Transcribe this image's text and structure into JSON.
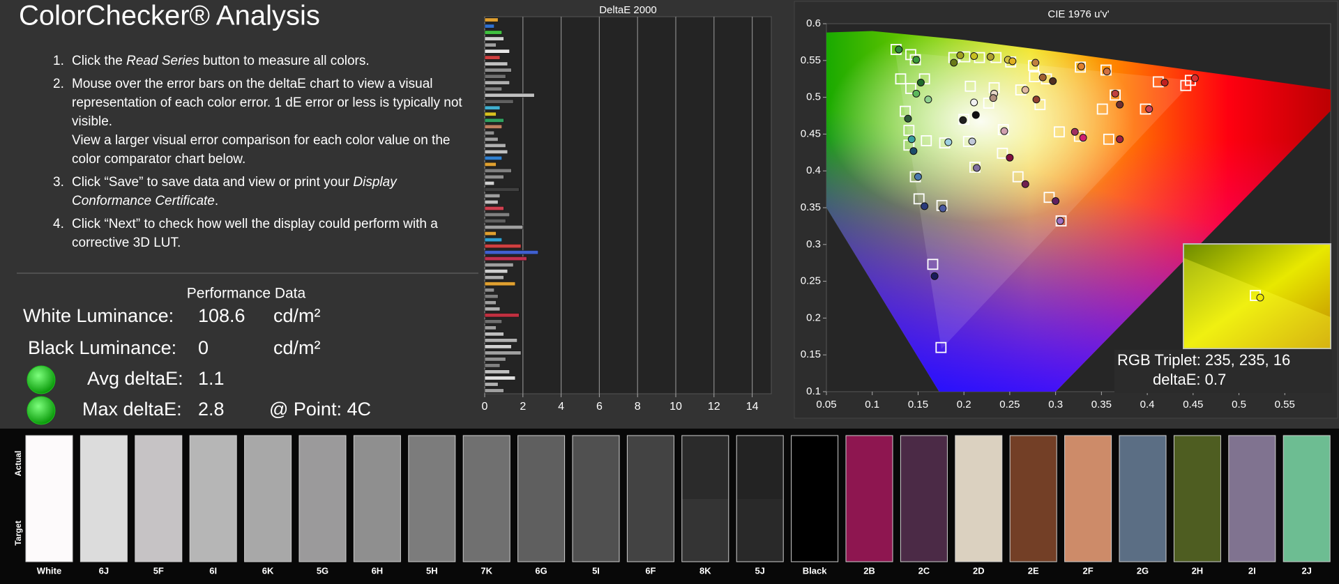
{
  "header": {
    "title": "ColorChecker® Analysis"
  },
  "instructions": [
    {
      "number": "1.",
      "paragraphs": [
        [
          {
            "text": "Click the "
          },
          {
            "text": "Read Series",
            "italic": true
          },
          {
            "text": " button to measure all colors."
          }
        ]
      ]
    },
    {
      "number": "2.",
      "paragraphs": [
        [
          {
            "text": "Mouse over the error bars on the deltaE chart to view a visual representation of each color error. 1 dE error or less is typically not visible."
          }
        ],
        [
          {
            "text": "View a larger visual error comparison for each color value on the color comparator chart below."
          }
        ]
      ]
    },
    {
      "number": "3.",
      "paragraphs": [
        [
          {
            "text": "Click “Save” to save data and view or print your "
          },
          {
            "text": "Display Conformance Certificate",
            "italic": true
          },
          {
            "text": "."
          }
        ]
      ]
    },
    {
      "number": "4.",
      "paragraphs": [
        [
          {
            "text": "Click “Next” to check how well the display could perform with a corrective 3D LUT."
          }
        ]
      ]
    }
  ],
  "performance": {
    "title": "Performance Data",
    "white_luminance": {
      "label": "White Luminance:",
      "value": 108.6,
      "unit": "cd/m²"
    },
    "black_luminance": {
      "label": "Black Luminance:",
      "value": 0,
      "unit": "cd/m²"
    },
    "avg_deltae": {
      "label": "Avg deltaE:",
      "value": 1.1
    },
    "max_deltae": {
      "label": "Max deltaE:",
      "value": 2.8,
      "point": "@ Point: 4C"
    },
    "status_color": "#1fc21f"
  },
  "chart_data": [
    {
      "type": "bar",
      "orientation": "horizontal",
      "title": "DeltaE 2000",
      "values": [
        0.7,
        0.5,
        0.9,
        1.0,
        0.6,
        1.3,
        0.8,
        1.2,
        1.4,
        1.1,
        1.3,
        0.9,
        2.6,
        1.5,
        0.8,
        0.6,
        1.0,
        0.9,
        0.5,
        0.7,
        1.1,
        1.2,
        0.9,
        0.6,
        1.4,
        1.0,
        0.5,
        1.8,
        0.8,
        0.7,
        1.0,
        1.3,
        1.1,
        2.0,
        0.6,
        0.9,
        1.9,
        2.8,
        2.2,
        1.5,
        1.2,
        1.0,
        1.6,
        0.5,
        0.7,
        0.6,
        0.8,
        1.8,
        0.9,
        0.6,
        1.0,
        1.7,
        1.4,
        1.9,
        1.1,
        0.8,
        1.3,
        1.6,
        0.7,
        1.0
      ],
      "colors": [
        "#e0a030",
        "#3070d0",
        "#40c040",
        "#d0d0d0",
        "#a0a0a0",
        "#e8e8e8",
        "#d04040",
        "#c0c0c0",
        "#909090",
        "#707070",
        "#b0b0b0",
        "#808080",
        "#c0c0c0",
        "#606060",
        "#40b0d0",
        "#d8c020",
        "#30a060",
        "#c08060",
        "#909090",
        "#a0a0a0",
        "#b0b0b0",
        "#c0c0c0",
        "#3080d0",
        "#e0a030",
        "#808080",
        "#909090",
        "#d0d0d0",
        "#404040",
        "#a0a0a0",
        "#c0c0c0",
        "#d04050",
        "#808080",
        "#606060",
        "#a0a0a0",
        "#e0a030",
        "#30a0d0",
        "#d04040",
        "#4060d0",
        "#c03050",
        "#a0a0a0",
        "#d0d0d0",
        "#b0b0b0",
        "#e0a030",
        "#909090",
        "#808080",
        "#a0a0a0",
        "#b0b0b0",
        "#c03040",
        "#707070",
        "#a0a0a0",
        "#c0c0c0",
        "#b0b0b0",
        "#d0d0d0",
        "#a0a0a0",
        "#909090",
        "#808080",
        "#c0c0c0",
        "#e0e0e0",
        "#b0b0b0",
        "#a0a0a0"
      ],
      "xlim": [
        0,
        15
      ],
      "xticks": [
        0,
        2,
        4,
        6,
        8,
        10,
        12,
        14
      ],
      "grid": true
    },
    {
      "type": "scatter",
      "title": "CIE 1976 u'v'",
      "xlim": [
        0.05,
        0.6
      ],
      "ylim": [
        0.1,
        0.6
      ],
      "xticks": [
        0.05,
        0.1,
        0.15,
        0.2,
        0.25,
        0.3,
        0.35,
        0.4,
        0.45,
        0.5,
        0.55
      ],
      "yticks": [
        0.1,
        0.15,
        0.2,
        0.25,
        0.3,
        0.35,
        0.4,
        0.45,
        0.5,
        0.55,
        0.6
      ],
      "grid": false,
      "series": [
        {
          "marker": "square",
          "color": "#ffffff",
          "x": [
            0.126,
            0.142,
            0.147,
            0.131,
            0.142,
            0.157,
            0.136,
            0.14,
            0.14,
            0.159,
            0.179,
            0.205,
            0.147,
            0.151,
            0.176,
            0.166,
            0.175,
            0.189,
            0.201,
            0.217,
            0.235,
            0.251,
            0.276,
            0.277,
            0.29,
            0.207,
            0.233,
            0.262,
            0.327,
            0.355,
            0.365,
            0.351,
            0.398,
            0.412,
            0.442,
            0.447,
            0.304,
            0.326,
            0.358,
            0.243,
            0.242,
            0.212,
            0.259,
            0.293,
            0.306,
            0.2,
            0.227,
            0.283
          ],
          "y": [
            0.565,
            0.558,
            0.551,
            0.525,
            0.512,
            0.525,
            0.481,
            0.455,
            0.435,
            0.441,
            0.438,
            0.44,
            0.392,
            0.362,
            0.353,
            0.273,
            0.16,
            0.554,
            0.555,
            0.554,
            0.554,
            0.548,
            0.543,
            0.528,
            0.525,
            0.515,
            0.513,
            0.51,
            0.541,
            0.537,
            0.503,
            0.484,
            0.484,
            0.521,
            0.516,
            0.523,
            0.453,
            0.447,
            0.443,
            0.456,
            0.424,
            0.405,
            0.392,
            0.364,
            0.332,
            0.47,
            0.492,
            0.49
          ]
        },
        {
          "marker": "circle",
          "x": [
            0.129,
            0.148,
            0.153,
            0.148,
            0.161,
            0.139,
            0.143,
            0.145,
            0.183,
            0.209,
            0.15,
            0.157,
            0.177,
            0.168,
            0.189,
            0.196,
            0.211,
            0.229,
            0.248,
            0.253,
            0.278,
            0.286,
            0.297,
            0.211,
            0.233,
            0.267,
            0.328,
            0.356,
            0.37,
            0.365,
            0.402,
            0.419,
            0.452,
            0.321,
            0.33,
            0.37,
            0.244,
            0.25,
            0.214,
            0.267,
            0.3,
            0.305,
            0.199,
            0.213,
            0.232,
            0.279
          ],
          "y": [
            0.565,
            0.551,
            0.52,
            0.505,
            0.497,
            0.471,
            0.443,
            0.427,
            0.439,
            0.44,
            0.392,
            0.352,
            0.349,
            0.257,
            0.547,
            0.557,
            0.556,
            0.555,
            0.551,
            0.549,
            0.547,
            0.527,
            0.522,
            0.493,
            0.505,
            0.51,
            0.542,
            0.535,
            0.49,
            0.505,
            0.484,
            0.52,
            0.526,
            0.453,
            0.445,
            0.443,
            0.454,
            0.418,
            0.404,
            0.382,
            0.359,
            0.332,
            0.469,
            0.476,
            0.499,
            0.497
          ],
          "colors": [
            "#2e8b3a",
            "#3a9a3a",
            "#1f6b2a",
            "#5cb85c",
            "#8fd08f",
            "#2e5a3a",
            "#3aa0a0",
            "#1d4d6b",
            "#9ed0e0",
            "#c0c8d8",
            "#4a7ab0",
            "#2a3a7a",
            "#4a5aa0",
            "#1a1a5a",
            "#6a7a1a",
            "#a0a020",
            "#c8c020",
            "#b0a030",
            "#d0c040",
            "#e0b020",
            "#c08040",
            "#a06030",
            "#503020",
            "#f0f0f0",
            "#e8d8c8",
            "#e0b8a0",
            "#e08030",
            "#d07040",
            "#703030",
            "#c04040",
            "#d04050",
            "#c02020",
            "#e03030",
            "#a03060",
            "#d02070",
            "#a02040",
            "#d0a0b0",
            "#801040",
            "#8070a0",
            "#702050",
            "#602060",
            "#a070c0",
            "#202020",
            "#101010",
            "#b09080",
            "#904030"
          ]
        }
      ],
      "readout": {
        "rgb": "RGB Triplet: 235, 235, 16",
        "deltae": "deltaE: 0.7"
      }
    }
  ],
  "swatches": {
    "row_labels": [
      "Actual",
      "Target"
    ],
    "items": [
      {
        "label": "White",
        "actual": "#fdfafb",
        "target": "#fdfafb"
      },
      {
        "label": "6J",
        "actual": "#dcdcdc",
        "target": "#dcdcdc"
      },
      {
        "label": "5F",
        "actual": "#c6c3c5",
        "target": "#c6c3c5"
      },
      {
        "label": "6I",
        "actual": "#b6b6b6",
        "target": "#b6b6b6"
      },
      {
        "label": "6K",
        "actual": "#a8a8a8",
        "target": "#a8a8a8"
      },
      {
        "label": "5G",
        "actual": "#9b9a9b",
        "target": "#9b9a9b"
      },
      {
        "label": "6H",
        "actual": "#8f8f8f",
        "target": "#8f8f8f"
      },
      {
        "label": "5H",
        "actual": "#7c7c7c",
        "target": "#7c7c7c"
      },
      {
        "label": "7K",
        "actual": "#707070",
        "target": "#707070"
      },
      {
        "label": "6G",
        "actual": "#5f5f5f",
        "target": "#5f5f5f"
      },
      {
        "label": "5I",
        "actual": "#505050",
        "target": "#505050"
      },
      {
        "label": "6F",
        "actual": "#434343",
        "target": "#434343"
      },
      {
        "label": "8K",
        "actual": "#2b2b2b",
        "target": "#343434"
      },
      {
        "label": "5J",
        "actual": "#232323",
        "target": "#292929"
      },
      {
        "label": "Black",
        "actual": "#000000",
        "target": "#000000"
      },
      {
        "label": "2B",
        "actual": "#8e1650",
        "target": "#8e1650"
      },
      {
        "label": "2C",
        "actual": "#4b2a46",
        "target": "#4b2a46"
      },
      {
        "label": "2D",
        "actual": "#dbd1c0",
        "target": "#dbd1c0"
      },
      {
        "label": "2E",
        "actual": "#733f26",
        "target": "#733f26"
      },
      {
        "label": "2F",
        "actual": "#cd8b69",
        "target": "#cd8b69"
      },
      {
        "label": "2G",
        "actual": "#5b6e84",
        "target": "#5b6e84"
      },
      {
        "label": "2H",
        "actual": "#4e5d21",
        "target": "#4e5d21"
      },
      {
        "label": "2I",
        "actual": "#807390",
        "target": "#807390"
      },
      {
        "label": "2J",
        "actual": "#6dbd92",
        "target": "#6dbd92"
      }
    ]
  }
}
